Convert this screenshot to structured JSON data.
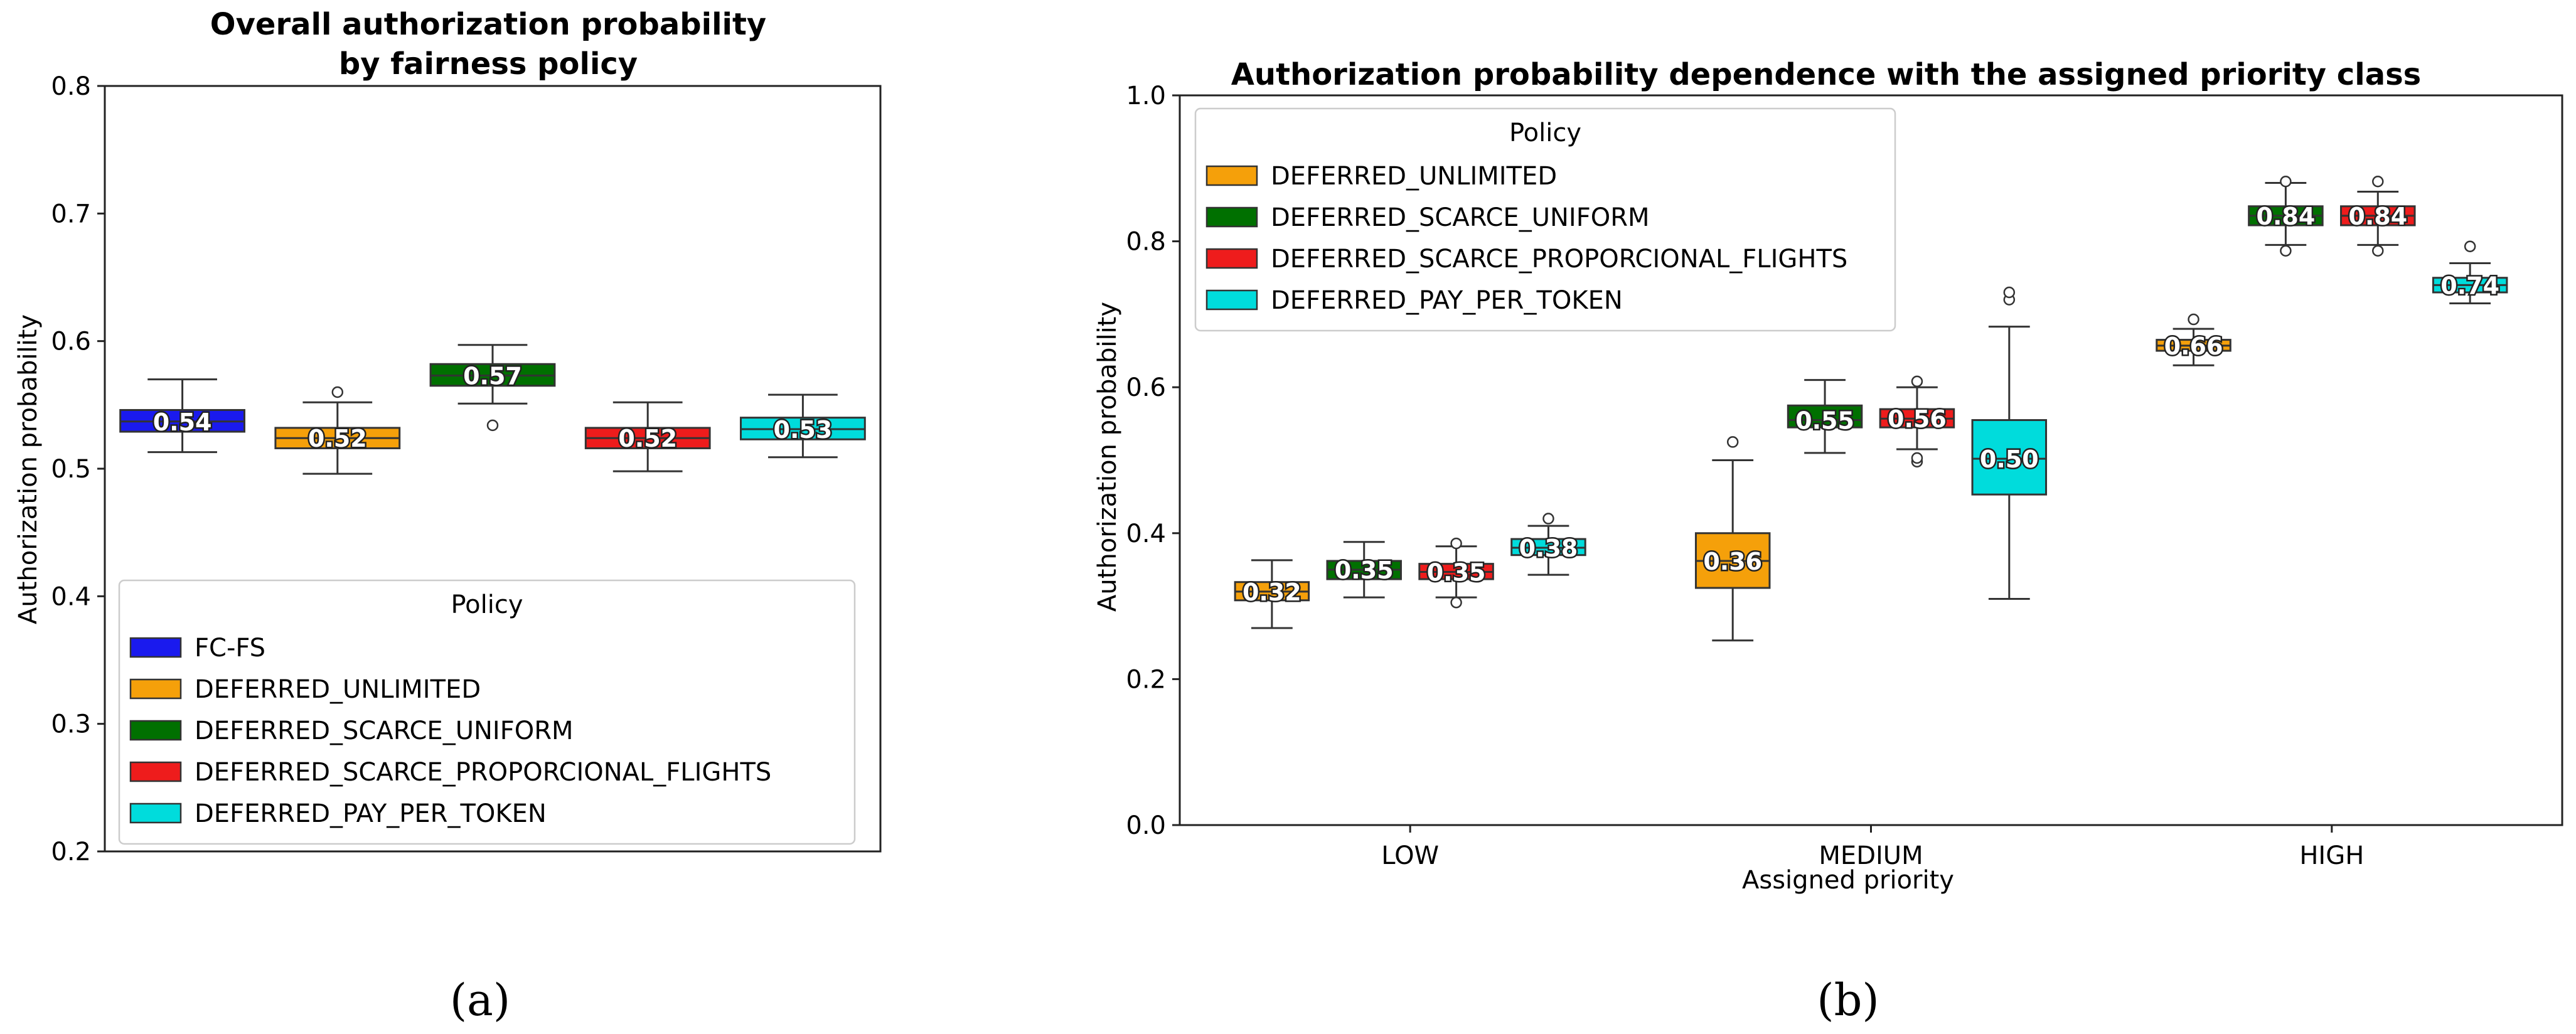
{
  "chart_data": [
    {
      "type": "box",
      "title": "Overall authorization probability\nby fairness policy",
      "xlabel": "",
      "ylabel": "Authorization probability",
      "ylim": [
        0.2,
        0.8
      ],
      "yticks": [
        "0.2",
        "0.3",
        "0.4",
        "0.5",
        "0.6",
        "0.7",
        "0.8"
      ],
      "legend": {
        "title": "Policy",
        "position": "lower-center",
        "entries": [
          {
            "label": "FC-FS",
            "color": "#1a1aee"
          },
          {
            "label": "DEFERRED_UNLIMITED",
            "color": "#f5a00a"
          },
          {
            "label": "DEFERRED_SCARCE_UNIFORM",
            "color": "#007000"
          },
          {
            "label": "DEFERRED_SCARCE_PROPORCIONAL_FLIGHTS",
            "color": "#ee1c1c"
          },
          {
            "label": "DEFERRED_PAY_PER_TOKEN",
            "color": "#00dcdc"
          }
        ]
      },
      "boxes": [
        {
          "policy": "FC-FS",
          "color": "#1a1aee",
          "median_label": "0.54",
          "whisker_low": 0.513,
          "q1": 0.529,
          "median": 0.537,
          "q3": 0.546,
          "whisker_high": 0.57,
          "outliers": []
        },
        {
          "policy": "DEFERRED_UNLIMITED",
          "color": "#f5a00a",
          "median_label": "0.52",
          "whisker_low": 0.496,
          "q1": 0.516,
          "median": 0.524,
          "q3": 0.532,
          "whisker_high": 0.552,
          "outliers": [
            0.56
          ]
        },
        {
          "policy": "DEFERRED_SCARCE_UNIFORM",
          "color": "#007000",
          "median_label": "0.57",
          "whisker_low": 0.551,
          "q1": 0.565,
          "median": 0.573,
          "q3": 0.582,
          "whisker_high": 0.597,
          "outliers": [
            0.534
          ]
        },
        {
          "policy": "DEFERRED_SCARCE_PROPORCIONAL_FLIGHTS",
          "color": "#ee1c1c",
          "median_label": "0.52",
          "whisker_low": 0.498,
          "q1": 0.516,
          "median": 0.524,
          "q3": 0.532,
          "whisker_high": 0.552,
          "outliers": []
        },
        {
          "policy": "DEFERRED_PAY_PER_TOKEN",
          "color": "#00dcdc",
          "median_label": "0.53",
          "whisker_low": 0.509,
          "q1": 0.523,
          "median": 0.531,
          "q3": 0.54,
          "whisker_high": 0.558,
          "outliers": []
        }
      ]
    },
    {
      "type": "box",
      "title": "Authorization probability dependence with the assigned priority class",
      "xlabel": "Assigned priority",
      "ylabel": "Authorization probability",
      "ylim": [
        0.0,
        1.0
      ],
      "yticks": [
        "0.0",
        "0.2",
        "0.4",
        "0.6",
        "0.8",
        "1.0"
      ],
      "categories": [
        "LOW",
        "MEDIUM",
        "HIGH"
      ],
      "legend": {
        "title": "Policy",
        "position": "upper-left",
        "entries": [
          {
            "label": "DEFERRED_UNLIMITED",
            "color": "#f5a00a"
          },
          {
            "label": "DEFERRED_SCARCE_UNIFORM",
            "color": "#007000"
          },
          {
            "label": "DEFERRED_SCARCE_PROPORCIONAL_FLIGHTS",
            "color": "#ee1c1c"
          },
          {
            "label": "DEFERRED_PAY_PER_TOKEN",
            "color": "#00dcdc"
          }
        ]
      },
      "series": [
        {
          "name": "DEFERRED_UNLIMITED",
          "color": "#f5a00a",
          "boxes": [
            {
              "category": "LOW",
              "median_label": "0.32",
              "whisker_low": 0.27,
              "q1": 0.308,
              "median": 0.32,
              "q3": 0.333,
              "whisker_high": 0.363,
              "outliers": []
            },
            {
              "category": "MEDIUM",
              "median_label": "0.36",
              "whisker_low": 0.253,
              "q1": 0.325,
              "median": 0.362,
              "q3": 0.4,
              "whisker_high": 0.5,
              "outliers": [
                0.525
              ]
            },
            {
              "category": "HIGH",
              "median_label": "0.66",
              "whisker_low": 0.63,
              "q1": 0.65,
              "median": 0.657,
              "q3": 0.665,
              "whisker_high": 0.68,
              "outliers": [
                0.693
              ]
            }
          ]
        },
        {
          "name": "DEFERRED_SCARCE_UNIFORM",
          "color": "#007000",
          "boxes": [
            {
              "category": "LOW",
              "median_label": "0.35",
              "whisker_low": 0.312,
              "q1": 0.337,
              "median": 0.35,
              "q3": 0.362,
              "whisker_high": 0.388,
              "outliers": []
            },
            {
              "category": "MEDIUM",
              "median_label": "0.55",
              "whisker_low": 0.51,
              "q1": 0.545,
              "median": 0.555,
              "q3": 0.575,
              "whisker_high": 0.61,
              "outliers": []
            },
            {
              "category": "HIGH",
              "median_label": "0.84",
              "whisker_low": 0.795,
              "q1": 0.822,
              "median": 0.835,
              "q3": 0.848,
              "whisker_high": 0.88,
              "outliers": [
                0.787,
                0.882
              ]
            }
          ]
        },
        {
          "name": "DEFERRED_SCARCE_PROPORCIONAL_FLIGHTS",
          "color": "#ee1c1c",
          "boxes": [
            {
              "category": "LOW",
              "median_label": "0.35",
              "whisker_low": 0.312,
              "q1": 0.337,
              "median": 0.347,
              "q3": 0.358,
              "whisker_high": 0.382,
              "outliers": [
                0.305,
                0.386
              ]
            },
            {
              "category": "MEDIUM",
              "median_label": "0.56",
              "whisker_low": 0.515,
              "q1": 0.545,
              "median": 0.557,
              "q3": 0.57,
              "whisker_high": 0.6,
              "outliers": [
                0.498,
                0.503,
                0.608
              ]
            },
            {
              "category": "HIGH",
              "median_label": "0.84",
              "whisker_low": 0.795,
              "q1": 0.822,
              "median": 0.835,
              "q3": 0.848,
              "whisker_high": 0.868,
              "outliers": [
                0.787,
                0.882
              ]
            }
          ]
        },
        {
          "name": "DEFERRED_PAY_PER_TOKEN",
          "color": "#00dcdc",
          "boxes": [
            {
              "category": "LOW",
              "median_label": "0.38",
              "whisker_low": 0.343,
              "q1": 0.37,
              "median": 0.38,
              "q3": 0.392,
              "whisker_high": 0.41,
              "outliers": [
                0.42
              ]
            },
            {
              "category": "MEDIUM",
              "median_label": "0.50",
              "whisker_low": 0.31,
              "q1": 0.453,
              "median": 0.502,
              "q3": 0.555,
              "whisker_high": 0.683,
              "outliers": [
                0.72,
                0.73
              ]
            },
            {
              "category": "HIGH",
              "median_label": "0.74",
              "whisker_low": 0.715,
              "q1": 0.73,
              "median": 0.74,
              "q3": 0.75,
              "whisker_high": 0.77,
              "outliers": [
                0.793
              ]
            }
          ]
        }
      ]
    }
  ],
  "panel_labels": [
    "(a)",
    "(b)"
  ]
}
